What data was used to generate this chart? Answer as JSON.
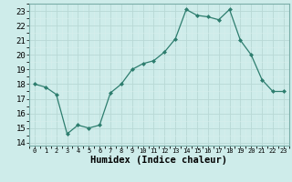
{
  "x": [
    0,
    1,
    2,
    3,
    4,
    5,
    6,
    7,
    8,
    9,
    10,
    11,
    12,
    13,
    14,
    15,
    16,
    17,
    18,
    19,
    20,
    21,
    22,
    23
  ],
  "y": [
    18.0,
    17.8,
    17.3,
    14.6,
    15.2,
    15.0,
    15.2,
    17.4,
    18.0,
    19.0,
    19.4,
    19.6,
    20.2,
    21.1,
    23.1,
    22.7,
    22.6,
    22.4,
    23.1,
    21.0,
    20.0,
    18.3,
    17.5,
    17.5
  ],
  "xlim": [
    -0.5,
    23.5
  ],
  "ylim": [
    13.8,
    23.5
  ],
  "yticks": [
    14,
    15,
    16,
    17,
    18,
    19,
    20,
    21,
    22,
    23
  ],
  "xticks": [
    0,
    1,
    2,
    3,
    4,
    5,
    6,
    7,
    8,
    9,
    10,
    11,
    12,
    13,
    14,
    15,
    16,
    17,
    18,
    19,
    20,
    21,
    22,
    23
  ],
  "xlabel": "Humidex (Indice chaleur)",
  "line_color": "#2d7d6e",
  "marker": "D",
  "marker_size": 2.0,
  "bg_color": "#ceecea",
  "grid_major_color": "#b8d8d5",
  "grid_minor_color": "#d8eeec",
  "xlabel_fontsize": 7.5,
  "tick_fontsize": 6.5,
  "xtick_fontsize": 5.0
}
